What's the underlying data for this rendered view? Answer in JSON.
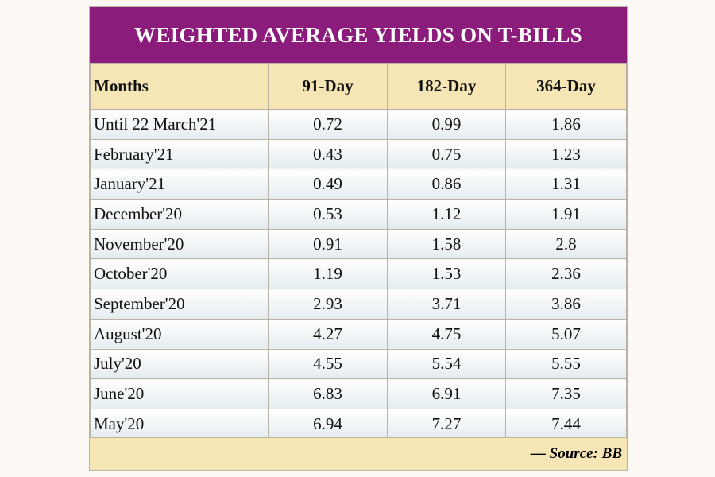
{
  "title": "WEIGHTED AVERAGE YIELDS ON T-BILLS",
  "table": {
    "header": [
      "Months",
      "91-Day",
      "182-Day",
      "364-Day"
    ],
    "rows": [
      [
        "Until 22 March'21",
        "0.72",
        "0.99",
        "1.86"
      ],
      [
        "February'21",
        "0.43",
        "0.75",
        "1.23"
      ],
      [
        "January'21",
        "0.49",
        "0.86",
        "1.31"
      ],
      [
        "December'20",
        "0.53",
        "1.12",
        "1.91"
      ],
      [
        "November'20",
        "0.91",
        "1.58",
        "2.8"
      ],
      [
        "October'20",
        "1.19",
        "1.53",
        "2.36"
      ],
      [
        "September'20",
        "2.93",
        "3.71",
        "3.86"
      ],
      [
        "August'20",
        "4.27",
        "4.75",
        "5.07"
      ],
      [
        "July'20",
        "4.55",
        "5.54",
        "5.55"
      ],
      [
        "June'20",
        "6.83",
        "6.91",
        "7.35"
      ],
      [
        "May'20",
        "6.94",
        "7.27",
        "7.44"
      ]
    ]
  },
  "source": "— Source: BB"
}
